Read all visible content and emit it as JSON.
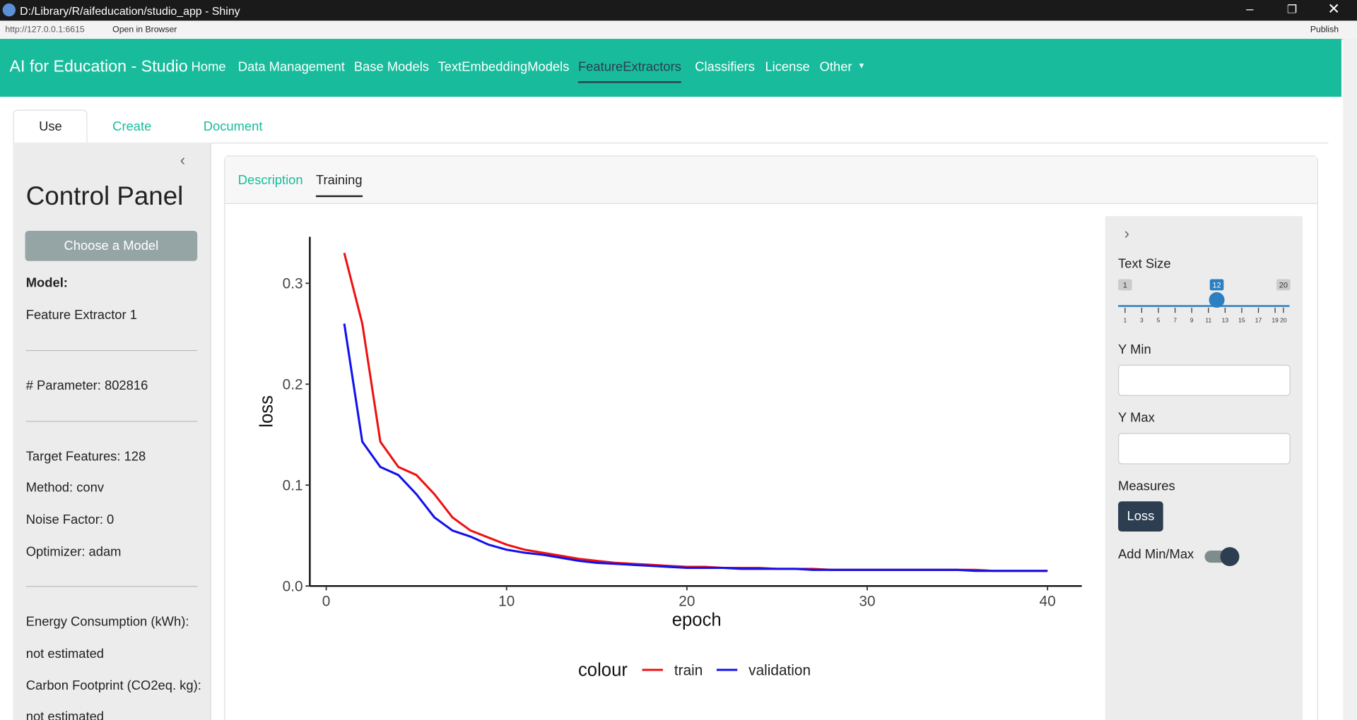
{
  "window": {
    "title": "D:/Library/R/aifeducation/studio_app - Shiny",
    "url": "http://127.0.0.1:6615",
    "open_browser": "Open in Browser",
    "publish": "Publish"
  },
  "nav": {
    "brand": "AI for Education - Studio",
    "items": [
      "Home",
      "Data Management",
      "Base Models",
      "TextEmbeddingModels",
      "FeatureExtractors",
      "Classifiers",
      "License",
      "Other"
    ]
  },
  "tabs": [
    "Use",
    "Create",
    "Document"
  ],
  "sidebar": {
    "title": "Control Panel",
    "button": "Choose a Model",
    "model_label": "Model:",
    "model_name": "Feature Extractor 1",
    "parameters": "# Parameter: 802816",
    "target_features": "Target Features: 128",
    "method": "Method: conv",
    "noise": "Noise Factor: 0",
    "optimizer": "Optimizer: adam",
    "energy_label": "Energy Consumption (kWh):",
    "energy": "not estimated",
    "carbon_label": "Carbon Footprint (CO2eq. kg):",
    "carbon": "not estimated"
  },
  "subtabs": [
    "Description",
    "Training"
  ],
  "controls": {
    "text_size": "Text Size",
    "slider": {
      "min": 1,
      "max": 20,
      "value": 12,
      "ticks": [
        1,
        3,
        5,
        7,
        9,
        11,
        13,
        15,
        17,
        19,
        20
      ]
    },
    "y_min": "Y Min",
    "y_max": "Y Max",
    "measures": "Measures",
    "loss_button": "Loss",
    "add_minmax": "Add Min/Max"
  },
  "chart_data": {
    "type": "line",
    "x_label": "epoch",
    "y_label": "loss",
    "legend_title": "colour",
    "x": [
      1,
      2,
      3,
      4,
      5,
      6,
      7,
      8,
      9,
      10,
      11,
      12,
      13,
      14,
      15,
      16,
      17,
      18,
      19,
      20,
      21,
      22,
      23,
      24,
      25,
      26,
      27,
      28,
      29,
      30,
      31,
      32,
      33,
      34,
      35,
      36,
      37,
      38,
      39,
      40
    ],
    "series": [
      {
        "name": "train",
        "color": "#ee1111",
        "values": [
          0.33,
          0.26,
          0.143,
          0.118,
          0.11,
          0.091,
          0.068,
          0.055,
          0.048,
          0.041,
          0.036,
          0.033,
          0.03,
          0.027,
          0.025,
          0.023,
          0.022,
          0.021,
          0.02,
          0.019,
          0.019,
          0.018,
          0.018,
          0.018,
          0.017,
          0.017,
          0.017,
          0.016,
          0.016,
          0.016,
          0.016,
          0.016,
          0.016,
          0.016,
          0.016,
          0.016,
          0.015,
          0.015,
          0.015,
          0.015
        ]
      },
      {
        "name": "validation",
        "color": "#1111ee",
        "values": [
          0.26,
          0.143,
          0.118,
          0.11,
          0.091,
          0.068,
          0.055,
          0.049,
          0.041,
          0.036,
          0.033,
          0.031,
          0.028,
          0.025,
          0.023,
          0.022,
          0.021,
          0.02,
          0.019,
          0.018,
          0.018,
          0.018,
          0.017,
          0.017,
          0.017,
          0.017,
          0.016,
          0.016,
          0.016,
          0.016,
          0.016,
          0.016,
          0.016,
          0.016,
          0.016,
          0.015,
          0.015,
          0.015,
          0.015,
          0.015
        ]
      }
    ],
    "xlim": [
      -0.91,
      41.9
    ],
    "xticks": [
      0,
      10,
      20,
      30,
      40
    ],
    "ylim": [
      0,
      0.346
    ],
    "yticks": [
      {
        "value": 0,
        "label": "0.0"
      },
      0.1,
      0.2,
      0.3
    ]
  }
}
